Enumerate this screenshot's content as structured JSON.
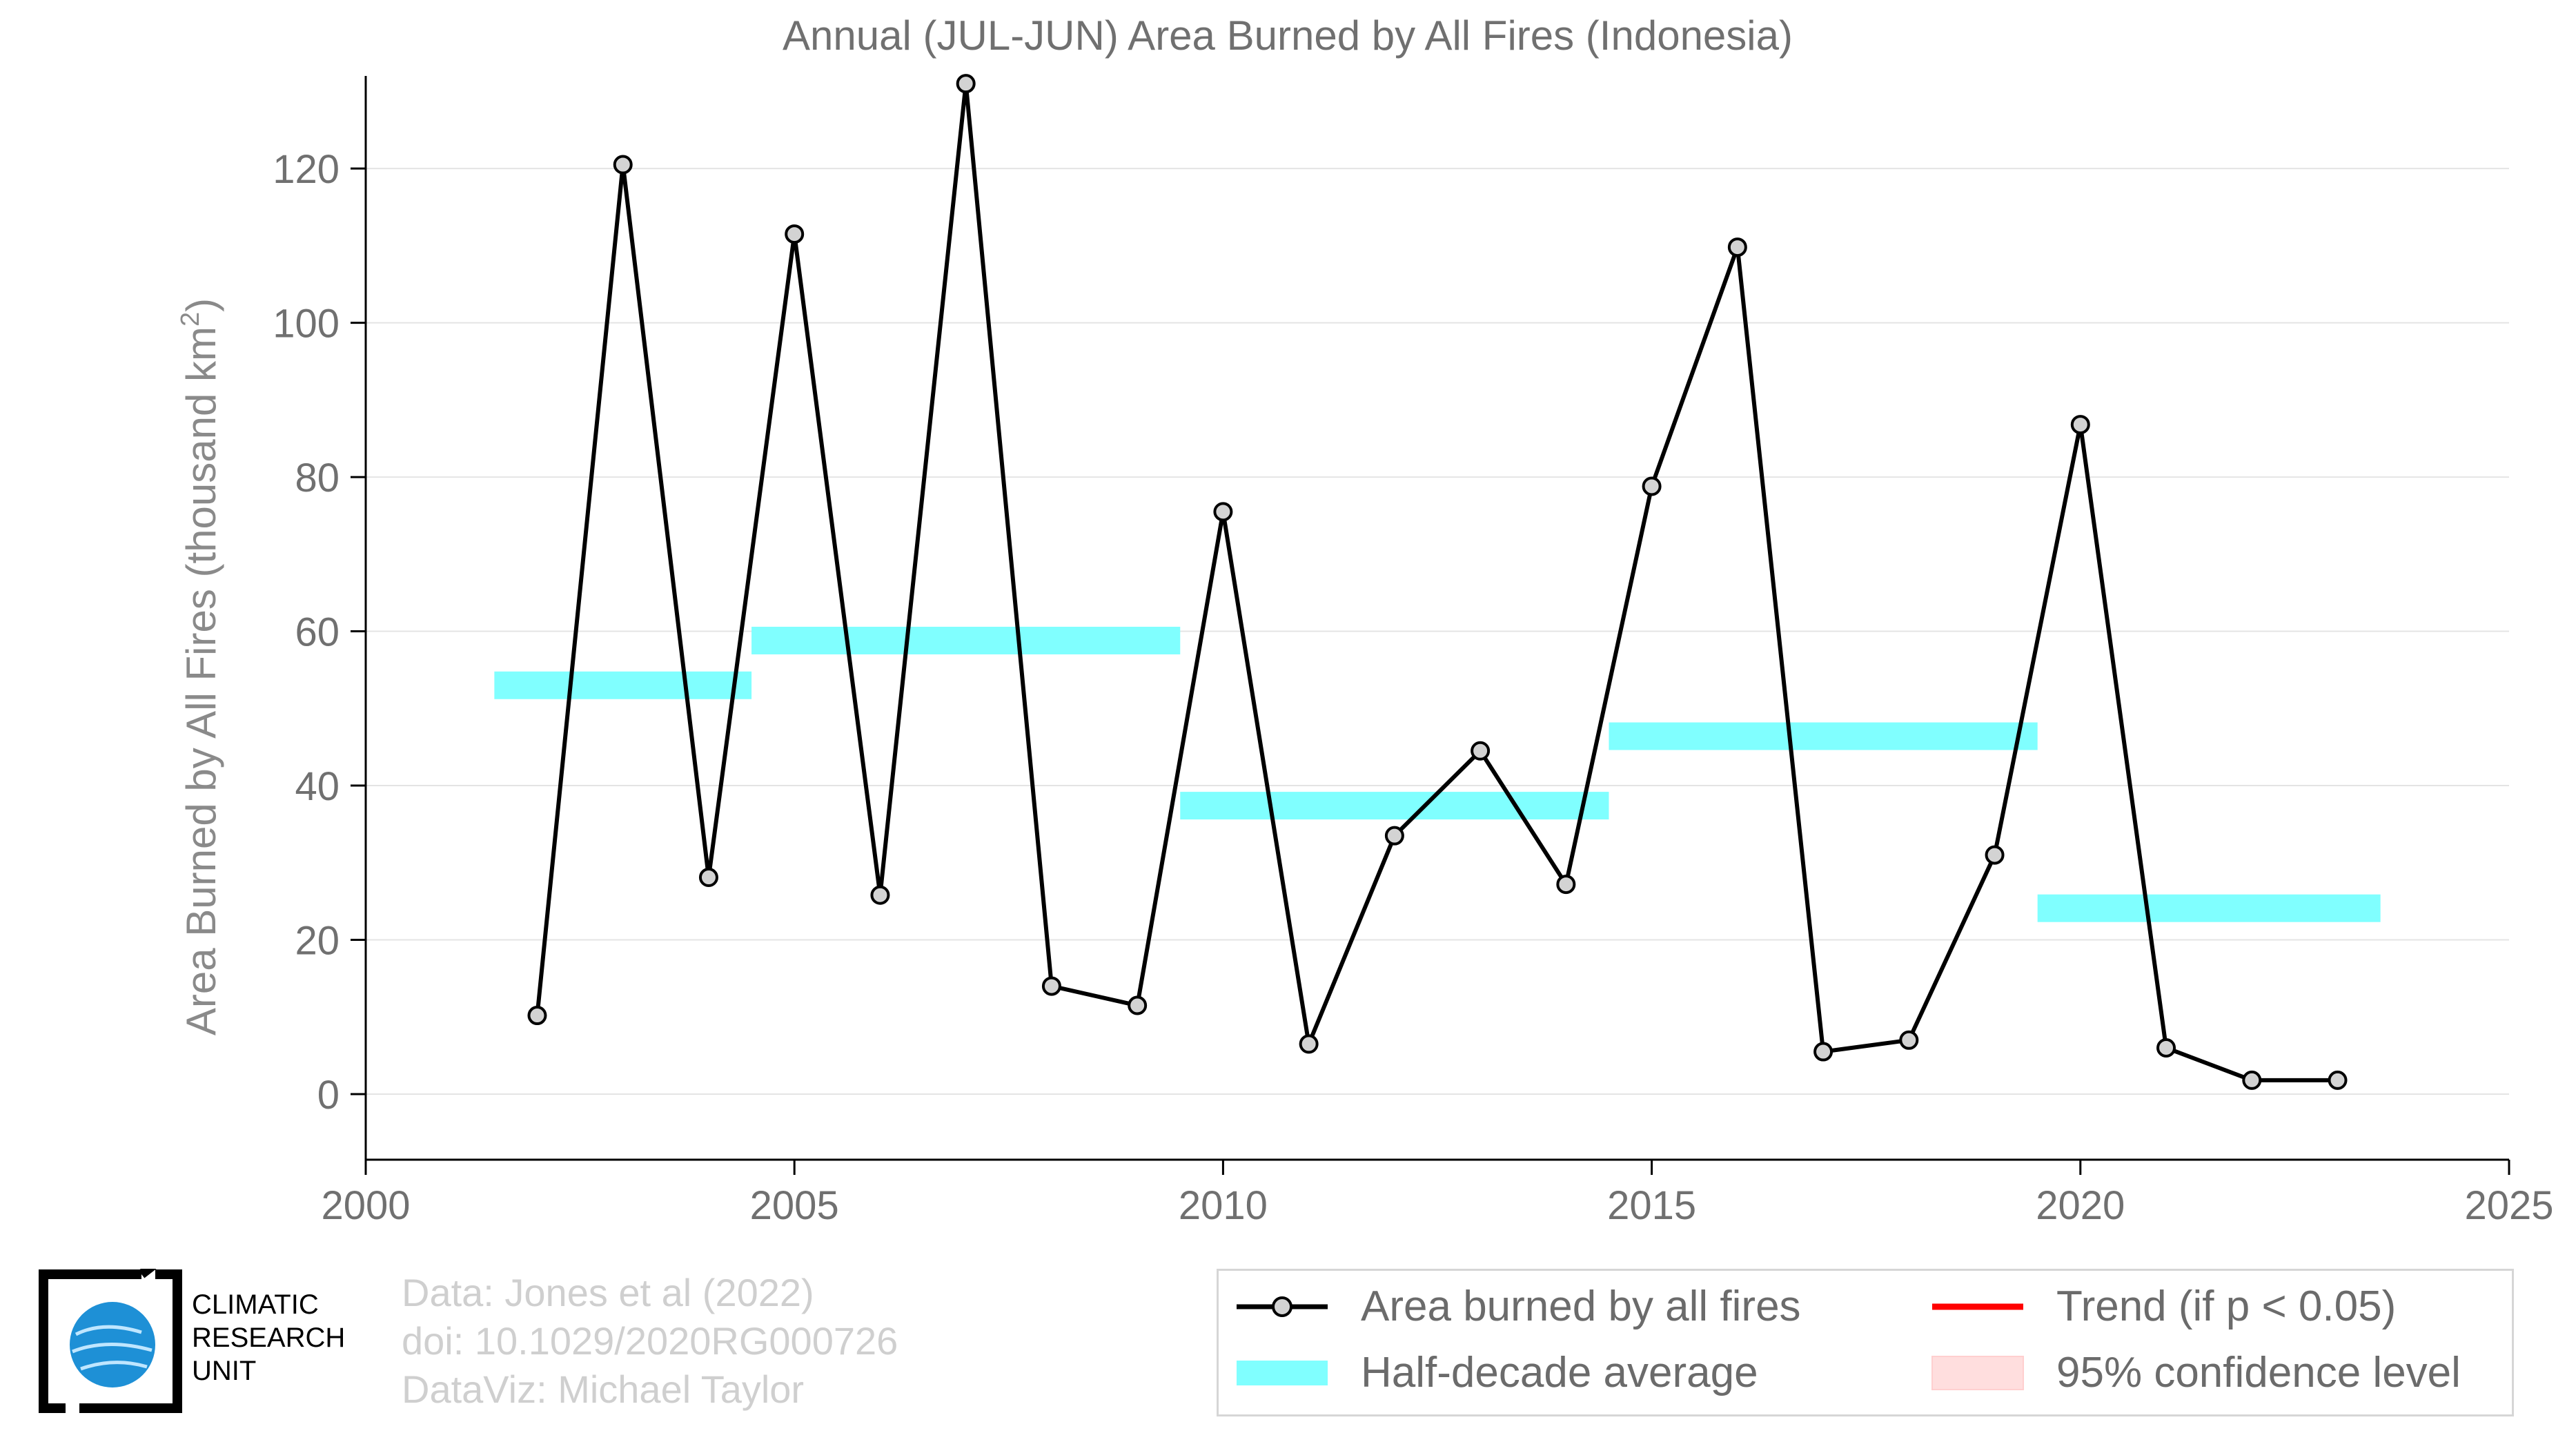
{
  "chart_data": {
    "type": "line",
    "title": "Annual (JUL-JUN) Area Burned by All Fires (Indonesia)",
    "ylabel_main": "Area Burned by All Fires (thousand km",
    "ylabel_sup": "2",
    "ylabel_end": ")",
    "xlim": [
      2000,
      2025
    ],
    "ylim": [
      -8.5,
      132
    ],
    "xticks": [
      2000,
      2005,
      2010,
      2015,
      2020,
      2025
    ],
    "yticks": [
      0,
      20,
      40,
      60,
      80,
      100,
      120
    ],
    "grid": "horizontal",
    "series": [
      {
        "name": "Area burned by all fires",
        "color": "#000000",
        "x": [
          2002,
          2003,
          2004,
          2005,
          2006,
          2007,
          2008,
          2009,
          2010,
          2011,
          2012,
          2013,
          2014,
          2015,
          2016,
          2017,
          2018,
          2019,
          2020,
          2021,
          2022,
          2023
        ],
        "y": [
          10.2,
          120.5,
          28.1,
          111.5,
          25.8,
          131.0,
          14.0,
          11.5,
          75.5,
          6.5,
          33.5,
          44.5,
          27.2,
          78.8,
          109.8,
          5.5,
          7.0,
          31.0,
          86.8,
          6.0,
          1.8,
          1.8
        ]
      }
    ],
    "half_decade_averages": [
      {
        "x_start": 2001.5,
        "x_end": 2004.5,
        "value": 53.0
      },
      {
        "x_start": 2004.5,
        "x_end": 2009.5,
        "value": 58.8
      },
      {
        "x_start": 2009.5,
        "x_end": 2014.5,
        "value": 37.4
      },
      {
        "x_start": 2014.5,
        "x_end": 2019.5,
        "value": 46.4
      },
      {
        "x_start": 2019.5,
        "x_end": 2023.5,
        "value": 24.1
      }
    ],
    "half_decade_color": "#80ffff",
    "legend": {
      "placement": "bottom-right",
      "entries": [
        {
          "label": "Area burned by all fires",
          "kind": "line-marker",
          "color": "#000000"
        },
        {
          "label": "Trend (if p < 0.05)",
          "kind": "line",
          "color": "#ff0000"
        },
        {
          "label": "Half-decade average",
          "kind": "band",
          "color": "#80ffff"
        },
        {
          "label": "95% confidence level",
          "kind": "patch",
          "color": "#ffdede"
        }
      ]
    }
  },
  "credits": {
    "line1": "Data: Jones et al (2022)",
    "line2": "doi: 10.1029/2020RG000726",
    "line3": "DataViz: Michael Taylor"
  },
  "logo": {
    "line1": "CLIMATIC",
    "line2": "RESEARCH",
    "line3": "UNIT",
    "globe_color": "#1e90d6"
  }
}
